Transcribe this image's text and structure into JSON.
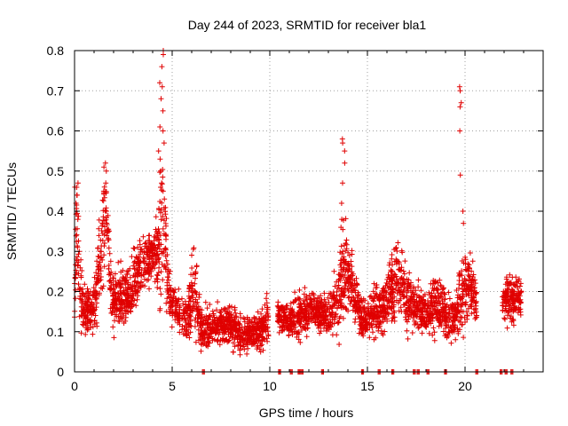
{
  "chart_data": {
    "type": "scatter",
    "title": "Day 244 of 2023, SRMTID for receiver bla1",
    "xlabel": "GPS time / hours",
    "ylabel": "SRMTID / TECUs",
    "xlim": [
      0,
      24
    ],
    "ylim": [
      0,
      0.8
    ],
    "xticks": [
      0,
      5,
      10,
      15,
      20
    ],
    "yticks": [
      0,
      0.1,
      0.2,
      0.3,
      0.4,
      0.5,
      0.6,
      0.7,
      0.8
    ],
    "ytick_labels": [
      "0",
      "0.1",
      "0.2",
      "0.3",
      "0.4",
      "0.5",
      "0.6",
      "0.7",
      "0.8"
    ],
    "grid": true,
    "marker": "plus",
    "color": "#e00000",
    "profile": [
      [
        0.0,
        0.17,
        0.08
      ],
      [
        0.1,
        0.38,
        0.1
      ],
      [
        0.3,
        0.18,
        0.07
      ],
      [
        0.6,
        0.15,
        0.05
      ],
      [
        1.0,
        0.16,
        0.06
      ],
      [
        1.4,
        0.3,
        0.12
      ],
      [
        1.6,
        0.4,
        0.12
      ],
      [
        1.9,
        0.17,
        0.06
      ],
      [
        2.3,
        0.18,
        0.07
      ],
      [
        2.8,
        0.19,
        0.06
      ],
      [
        3.2,
        0.24,
        0.06
      ],
      [
        3.6,
        0.27,
        0.06
      ],
      [
        4.0,
        0.29,
        0.05
      ],
      [
        4.3,
        0.3,
        0.08
      ],
      [
        4.5,
        0.4,
        0.2
      ],
      [
        4.8,
        0.2,
        0.06
      ],
      [
        5.2,
        0.15,
        0.05
      ],
      [
        5.8,
        0.13,
        0.05
      ],
      [
        6.1,
        0.22,
        0.1
      ],
      [
        6.5,
        0.11,
        0.05
      ],
      [
        7.0,
        0.11,
        0.04
      ],
      [
        7.5,
        0.12,
        0.04
      ],
      [
        8.0,
        0.12,
        0.04
      ],
      [
        8.5,
        0.09,
        0.04
      ],
      [
        9.0,
        0.09,
        0.04
      ],
      [
        9.5,
        0.1,
        0.04
      ],
      [
        10.0,
        0.13,
        0.06
      ],
      [
        10.5,
        0.14,
        0.03
      ],
      [
        11.0,
        0.12,
        0.04
      ],
      [
        11.5,
        0.14,
        0.05
      ],
      [
        12.0,
        0.15,
        0.05
      ],
      [
        12.5,
        0.15,
        0.04
      ],
      [
        13.0,
        0.14,
        0.04
      ],
      [
        13.5,
        0.18,
        0.08
      ],
      [
        13.8,
        0.25,
        0.12
      ],
      [
        14.2,
        0.22,
        0.07
      ],
      [
        14.7,
        0.13,
        0.04
      ],
      [
        15.2,
        0.15,
        0.05
      ],
      [
        15.8,
        0.16,
        0.06
      ],
      [
        16.5,
        0.24,
        0.08
      ],
      [
        17.0,
        0.18,
        0.06
      ],
      [
        17.5,
        0.16,
        0.05
      ],
      [
        18.0,
        0.14,
        0.05
      ],
      [
        18.5,
        0.17,
        0.06
      ],
      [
        19.0,
        0.14,
        0.05
      ],
      [
        19.5,
        0.13,
        0.05
      ],
      [
        19.8,
        0.2,
        0.1
      ],
      [
        20.2,
        0.22,
        0.07
      ],
      [
        20.6,
        0.18,
        0.05
      ]
    ],
    "segments": [
      [
        0.0,
        5.4
      ],
      [
        5.5,
        9.95
      ],
      [
        10.4,
        13.0
      ],
      [
        13.0,
        14.9
      ],
      [
        14.9,
        16.1
      ],
      [
        16.1,
        20.6
      ],
      [
        21.9,
        22.9
      ]
    ],
    "spikes": [
      {
        "x_range": [
          0.0,
          0.2
        ],
        "values": [
          0.47,
          0.46,
          0.44,
          0.42,
          0.4,
          0.38
        ]
      },
      {
        "x_range": [
          1.4,
          1.65
        ],
        "values": [
          0.52,
          0.51,
          0.5,
          0.47,
          0.45,
          0.4
        ]
      },
      {
        "x_range": [
          4.3,
          4.6
        ],
        "values": [
          0.8,
          0.79,
          0.76,
          0.72,
          0.71,
          0.68,
          0.65,
          0.61,
          0.6,
          0.57,
          0.55,
          0.53,
          0.5,
          0.47,
          0.45
        ]
      },
      {
        "x_range": [
          13.6,
          13.85
        ],
        "values": [
          0.58,
          0.57,
          0.55,
          0.52,
          0.47,
          0.42,
          0.38,
          0.36
        ]
      },
      {
        "x_range": [
          19.7,
          19.95
        ],
        "values": [
          0.71,
          0.7,
          0.67,
          0.66,
          0.6,
          0.49,
          0.4,
          0.37
        ]
      }
    ],
    "zero_points": [
      6.6,
      10.5,
      11.1,
      11.5,
      11.65,
      12.7,
      14.75,
      15.6,
      16.3,
      17.4,
      17.6,
      18.1,
      19.0,
      20.6,
      21.85,
      22.1,
      22.4
    ]
  }
}
